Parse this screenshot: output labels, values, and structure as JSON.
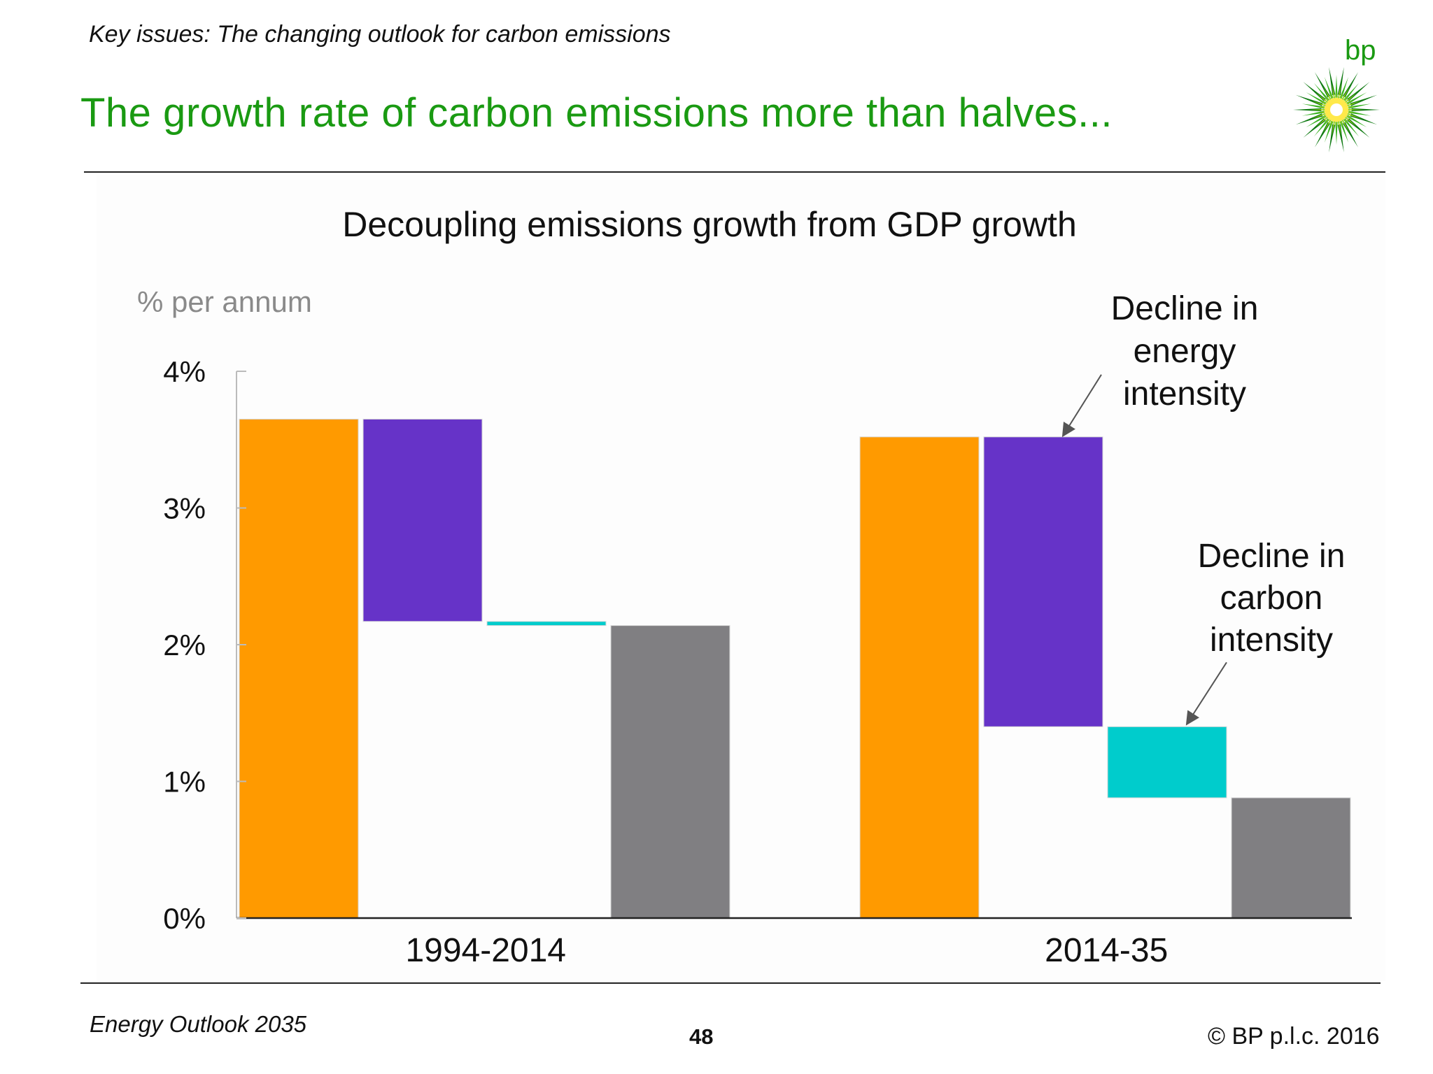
{
  "header": {
    "kicker": "Key issues: The changing outlook for carbon emissions",
    "headline": "The growth rate of carbon emissions more than halves...",
    "logo_text": "bp"
  },
  "footer": {
    "left": "Energy Outlook 2035",
    "page_number": "48",
    "copyright": "© BP p.l.c. 2016"
  },
  "colors": {
    "headline_green": "#1a9a12",
    "gdp_orange": "#ff9a00",
    "energy_intensity_purple": "#6633c8",
    "carbon_intensity_teal": "#00cccc",
    "emissions_grey": "#807f82"
  },
  "chart_data": {
    "type": "bar",
    "subtype": "waterfall",
    "title": "Decoupling emissions growth from GDP growth",
    "ylabel": "% per annum",
    "xlabel": "",
    "ylim": [
      0,
      4
    ],
    "yticks": [
      "0%",
      "1%",
      "2%",
      "3%",
      "4%"
    ],
    "grid": false,
    "groups": [
      {
        "label": "1994-2014",
        "bars": [
          {
            "role": "gdp",
            "base": 0,
            "top": 3.65
          },
          {
            "role": "energy-intensity",
            "base": 2.17,
            "top": 3.65
          },
          {
            "role": "carbon-intensity",
            "base": 2.14,
            "top": 2.17
          },
          {
            "role": "emissions",
            "base": 0,
            "top": 2.14
          }
        ]
      },
      {
        "label": "2014-35",
        "bars": [
          {
            "role": "gdp",
            "base": 0,
            "top": 3.52
          },
          {
            "role": "energy-intensity",
            "base": 1.4,
            "top": 3.52
          },
          {
            "role": "carbon-intensity",
            "base": 0.88,
            "top": 1.4
          },
          {
            "role": "emissions",
            "base": 0,
            "top": 0.88
          }
        ]
      }
    ],
    "annotations": [
      {
        "text_lines": [
          "Decline in",
          "energy",
          "intensity"
        ]
      },
      {
        "text_lines": [
          "Decline in",
          "carbon",
          "intensity"
        ]
      }
    ]
  }
}
